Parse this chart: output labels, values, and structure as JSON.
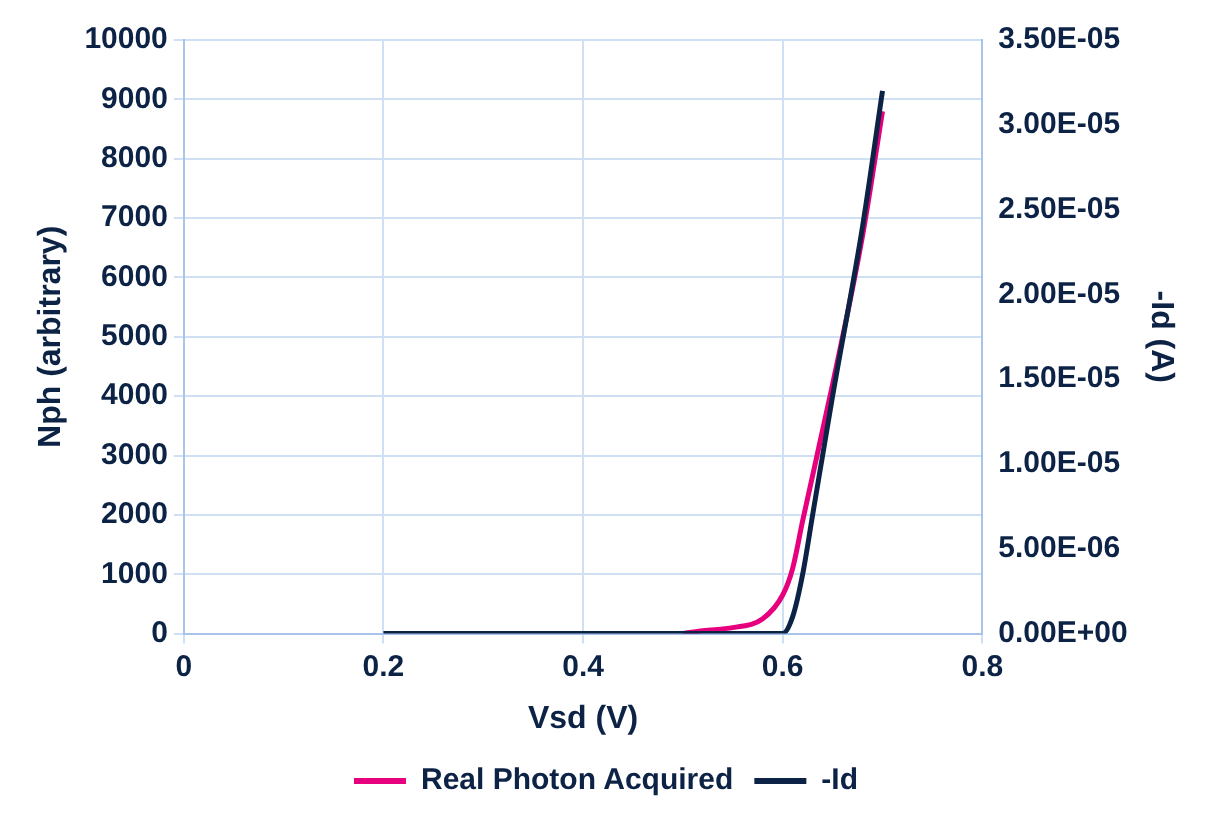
{
  "chart_data": {
    "type": "line",
    "xlabel": "Vsd (V)",
    "ylabel": "Nph (arbitrary)",
    "y2label": "-Id (A)",
    "xlim": [
      0,
      0.8
    ],
    "xticks": [
      0,
      0.2,
      0.4,
      0.6,
      0.8
    ],
    "ylim": [
      0,
      10000
    ],
    "yticks": [
      0,
      1000,
      2000,
      3000,
      4000,
      5000,
      6000,
      7000,
      8000,
      9000,
      10000
    ],
    "y2lim": [
      0,
      3.5e-05
    ],
    "y2ticks": [
      {
        "value": 0,
        "label": "0.00E+00"
      },
      {
        "value": 5e-06,
        "label": "5.00E-06"
      },
      {
        "value": 1e-05,
        "label": "1.00E-05"
      },
      {
        "value": 1.5e-05,
        "label": "1.50E-05"
      },
      {
        "value": 2e-05,
        "label": "2.00E-05"
      },
      {
        "value": 2.5e-05,
        "label": "2.50E-05"
      },
      {
        "value": 3e-05,
        "label": "3.00E-05"
      },
      {
        "value": 3.5e-05,
        "label": "3.50E-05"
      }
    ],
    "grid": true,
    "legend": "bottom",
    "marker": "none",
    "line_style": "solid",
    "series": [
      {
        "name": "Real Photon Acquired",
        "color": "#e6007e",
        "x": [
          0.5,
          0.52,
          0.55,
          0.58,
          0.6,
          0.61,
          0.62,
          0.65,
          0.68,
          0.7
        ],
        "values": [
          0,
          50,
          100,
          250,
          650,
          1100,
          1900,
          4200,
          6700,
          8800
        ]
      },
      {
        "name": "-Id",
        "color": "#0d2346",
        "axis": "y2",
        "x": [
          0.2,
          0.3,
          0.4,
          0.5,
          0.58,
          0.6,
          0.61,
          0.62,
          0.63,
          0.65,
          0.68,
          0.7
        ],
        "values": [
          0,
          0,
          0,
          0,
          0,
          0,
          1e-06,
          3.5e-06,
          7e-06,
          1.4e-05,
          2.4e-05,
          3.2e-05
        ]
      }
    ]
  }
}
